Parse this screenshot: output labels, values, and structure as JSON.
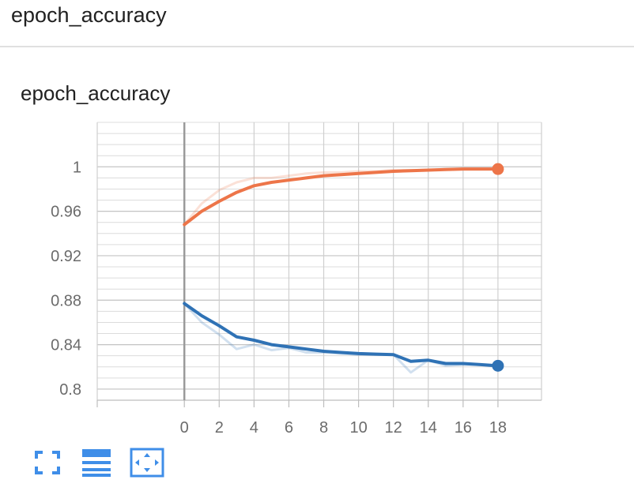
{
  "section": {
    "title": "epoch_accuracy"
  },
  "card": {
    "title": "epoch_accuracy"
  },
  "toolbar": {
    "buttons": [
      {
        "icon": "fullscreen-icon"
      },
      {
        "icon": "data-table-icon"
      },
      {
        "icon": "fit-domain-icon"
      }
    ],
    "color": "#3f8ee8"
  },
  "chart_data": {
    "type": "line",
    "xlim": [
      -5,
      20.5
    ],
    "ylim": [
      0.79,
      1.04
    ],
    "x_ticks": [
      0,
      2,
      4,
      6,
      8,
      10,
      12,
      14,
      16,
      18
    ],
    "y_ticks": [
      0.8,
      0.84,
      0.88,
      0.92,
      0.96,
      1
    ],
    "y_tick_labels": [
      "0.8",
      "0.84",
      "0.88",
      "0.92",
      "0.96",
      "1"
    ],
    "grid": true,
    "series": [
      {
        "color": "#ed7549",
        "x": [
          0,
          1,
          2,
          3,
          4,
          5,
          6,
          7,
          8,
          9,
          10,
          11,
          12,
          13,
          14,
          15,
          16,
          17,
          18
        ],
        "raw": [
          0.948,
          0.967,
          0.979,
          0.986,
          0.99,
          0.99,
          0.992,
          0.994,
          0.995,
          0.995,
          0.996,
          0.996,
          0.997,
          0.997,
          0.997,
          0.998,
          0.998,
          0.998,
          0.998
        ],
        "values": [
          0.948,
          0.96,
          0.969,
          0.977,
          0.983,
          0.986,
          0.988,
          0.99,
          0.992,
          0.993,
          0.994,
          0.995,
          0.996,
          0.9965,
          0.997,
          0.9975,
          0.998,
          0.998,
          0.998
        ]
      },
      {
        "color": "#2f72b5",
        "x": [
          0,
          1,
          2,
          3,
          4,
          5,
          6,
          7,
          8,
          9,
          10,
          11,
          12,
          13,
          14,
          15,
          16,
          17,
          18
        ],
        "raw": [
          0.877,
          0.86,
          0.849,
          0.836,
          0.84,
          0.835,
          0.837,
          0.833,
          0.833,
          0.832,
          0.831,
          0.831,
          0.831,
          0.815,
          0.826,
          0.821,
          0.822,
          0.822,
          0.82
        ],
        "values": [
          0.877,
          0.866,
          0.857,
          0.847,
          0.844,
          0.84,
          0.838,
          0.836,
          0.834,
          0.833,
          0.832,
          0.8315,
          0.831,
          0.825,
          0.826,
          0.823,
          0.823,
          0.822,
          0.821
        ]
      }
    ]
  }
}
